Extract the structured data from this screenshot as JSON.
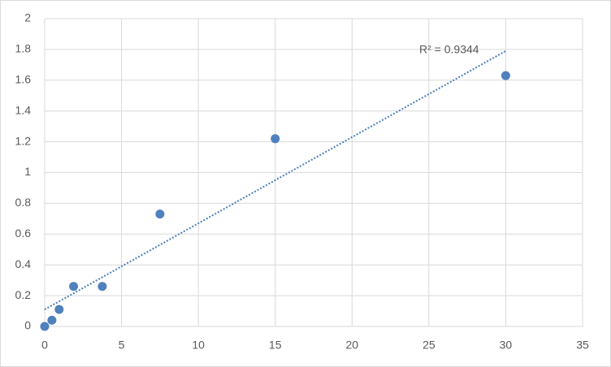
{
  "chart_data": {
    "type": "scatter",
    "x": [
      0,
      0.47,
      0.94,
      1.88,
      3.75,
      7.5,
      15,
      30
    ],
    "series": [
      {
        "color": "#4f81bd",
        "values": [
          0,
          0.04,
          0.11,
          0.26,
          0.26,
          0.73,
          1.22,
          1.63
        ]
      }
    ],
    "trendline": {
      "x": [
        0,
        30
      ],
      "y": [
        0.11,
        1.79
      ],
      "color": "#4a7ebb",
      "annotation": "R² = 0.9344"
    },
    "xlim": [
      0,
      35
    ],
    "xticks": [
      0,
      5,
      10,
      15,
      20,
      25,
      30,
      35
    ],
    "ylim": [
      0,
      2
    ],
    "yticks": [
      0,
      0.2,
      0.4,
      0.6,
      0.8,
      1,
      1.2,
      1.4,
      1.6,
      1.8,
      2
    ],
    "grid": true
  }
}
